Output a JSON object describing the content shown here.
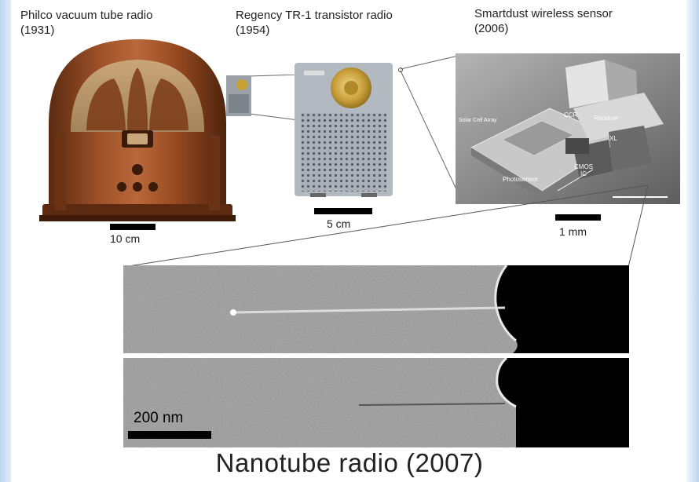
{
  "captions": {
    "philco": {
      "line1": "Philco vacuum tube radio",
      "line2": "(1931)"
    },
    "regency": {
      "line1": "Regency TR-1 transistor radio",
      "line2": "(1954)"
    },
    "smartdust": {
      "line1": "Smartdust wireless sensor",
      "line2": "(2006)"
    }
  },
  "scale_bars": {
    "philco": "10 cm",
    "regency": "5 cm",
    "smartdust": "1 mm",
    "nanotube": "200 nm"
  },
  "smartdust_labels": {
    "solar_cell_array": "Solar Cell Array",
    "ccr": "CCR",
    "receiver": "Receiver",
    "xl": "XL",
    "cmos_ic": "CMOS IC",
    "photosensor": "Photosensor"
  },
  "nanotube_title": "Nanotube radio (2007)"
}
